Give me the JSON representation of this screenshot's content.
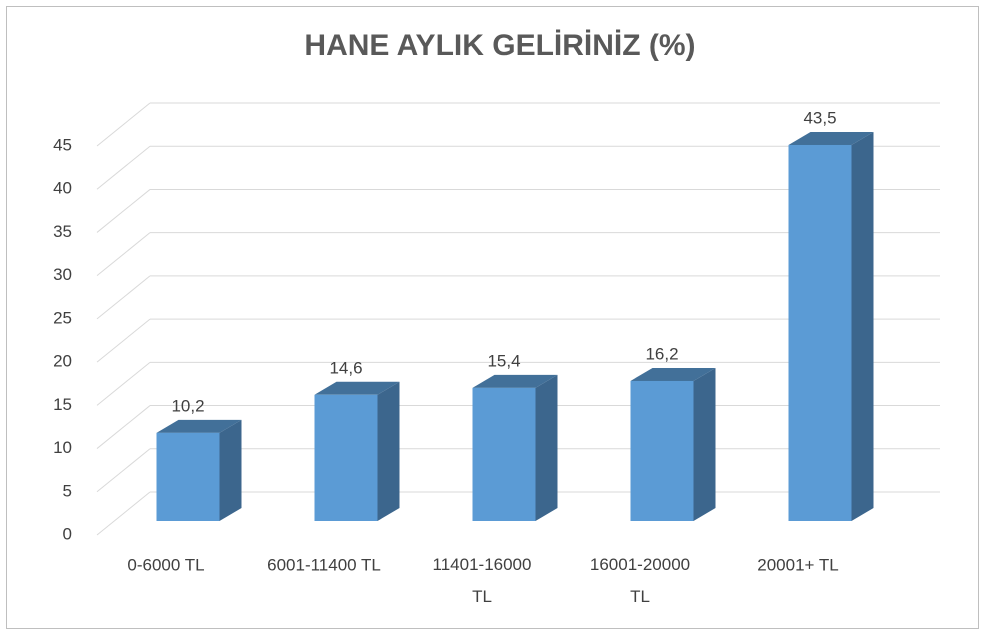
{
  "chart_data": {
    "type": "bar3d",
    "title": "HANE AYLIK GELİRİNİZ (%)",
    "categories": [
      "0-6000 TL",
      "6001-11400 TL",
      "11401-16000 TL",
      "16001-20000 TL",
      "20001+ TL"
    ],
    "values": [
      10.2,
      14.6,
      15.4,
      16.2,
      43.5
    ],
    "value_labels": [
      "10,2",
      "14,6",
      "15,4",
      "16,2",
      "43,5"
    ],
    "color": "#5b9bd5",
    "ylim": [
      0,
      45
    ],
    "yticks": [
      0,
      5,
      10,
      15,
      20,
      25,
      30,
      35,
      40,
      45
    ],
    "grid": true
  }
}
